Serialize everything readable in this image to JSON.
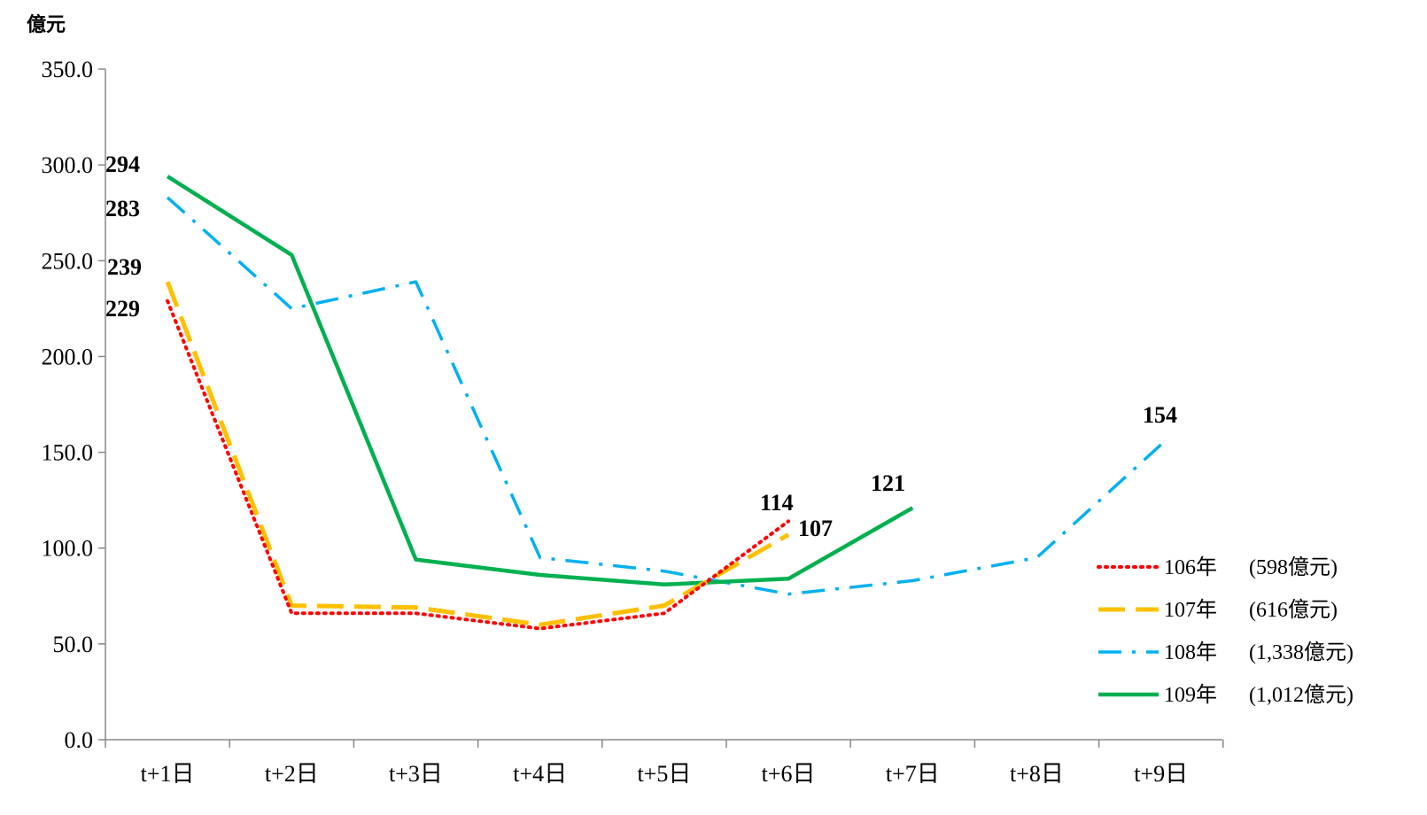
{
  "chart_data": {
    "type": "line",
    "ylabel": "億元",
    "ylim": [
      0,
      350
    ],
    "yticks": [
      "0.0",
      "50.0",
      "100.0",
      "150.0",
      "200.0",
      "250.0",
      "300.0",
      "350.0"
    ],
    "ytick_values": [
      0,
      50,
      100,
      150,
      200,
      250,
      300,
      350
    ],
    "categories": [
      "t+1日",
      "t+2日",
      "t+3日",
      "t+4日",
      "t+5日",
      "t+6日",
      "t+7日",
      "t+8日",
      "t+9日"
    ],
    "grid": false,
    "legend_position": "bottom-right",
    "series": [
      {
        "name": "106年",
        "total": "(598億元)",
        "color": "#ff0000",
        "style": "dotted",
        "values": [
          229,
          66,
          66,
          58,
          66,
          114,
          null,
          null,
          null
        ]
      },
      {
        "name": "107年",
        "total": "(616億元)",
        "color": "#ffc000",
        "style": "dashed",
        "values": [
          239,
          70,
          69,
          60,
          70,
          107,
          null,
          null,
          null
        ]
      },
      {
        "name": "108年",
        "total": "(1,338億元)",
        "color": "#00b0f0",
        "style": "dashdot",
        "values": [
          283,
          225,
          239,
          95,
          88,
          76,
          83,
          95,
          154
        ]
      },
      {
        "name": "109年",
        "total": "(1,012億元)",
        "color": "#00b050",
        "style": "solid",
        "values": [
          294,
          253,
          94,
          86,
          81,
          84,
          121,
          null,
          null
        ]
      }
    ],
    "annotations": [
      {
        "text": "294"
      },
      {
        "text": "283"
      },
      {
        "text": "239"
      },
      {
        "text": "229"
      },
      {
        "text": "114"
      },
      {
        "text": "107"
      },
      {
        "text": "121"
      },
      {
        "text": "154"
      }
    ]
  }
}
